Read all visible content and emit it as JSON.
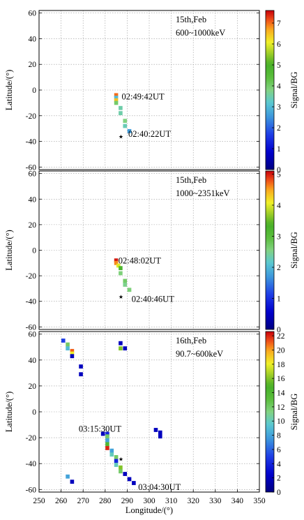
{
  "chart_data": [
    {
      "type": "heatmap",
      "date": "15th,Feb",
      "energy": "600~1000keV",
      "ylabel": "Latitude/(°)",
      "yticks": [
        "-60",
        "-40",
        "-20",
        "0",
        "20",
        "40",
        "60"
      ],
      "colorbar_label": "Signal/BG",
      "colorbar_ticks": [
        "0",
        "1",
        "2",
        "3",
        "4",
        "5",
        "6",
        "7"
      ],
      "colorbar_range": [
        0,
        7.6
      ],
      "xlim": [
        250,
        350
      ],
      "ylim": [
        -62,
        62
      ],
      "grid": true,
      "annotations": [
        {
          "text": "02:49:42UT",
          "lon": 287.5,
          "lat": -5
        },
        {
          "text": "02:40:22UT",
          "lon": 290.5,
          "lat": -34
        }
      ],
      "star": {
        "lon": 287,
        "lat": -36
      },
      "cells": [
        {
          "lon": 285,
          "lat": -4,
          "value": 7.0
        },
        {
          "lon": 285,
          "lat": -6,
          "value": 3.0
        },
        {
          "lon": 285,
          "lat": -8,
          "value": 6.5
        },
        {
          "lon": 285,
          "lat": -10,
          "value": 4.0
        },
        {
          "lon": 287,
          "lat": -14,
          "value": 3.5
        },
        {
          "lon": 287,
          "lat": -18,
          "value": 3.5
        },
        {
          "lon": 289,
          "lat": -24,
          "value": 3.8
        },
        {
          "lon": 289,
          "lat": -28,
          "value": 3.4
        },
        {
          "lon": 291,
          "lat": -32,
          "value": 2.6
        }
      ]
    },
    {
      "type": "heatmap",
      "date": "15th,Feb",
      "energy": "1000~2351keV",
      "ylabel": "Latitude/(°)",
      "yticks": [
        "-60",
        "-40",
        "-20",
        "0",
        "20",
        "40",
        "60"
      ],
      "colorbar_label": "Signal/BG",
      "colorbar_ticks": [
        "0",
        "1",
        "2",
        "3",
        "4",
        "5"
      ],
      "colorbar_range": [
        0,
        5.1
      ],
      "xlim": [
        250,
        350
      ],
      "ylim": [
        -62,
        62
      ],
      "grid": true,
      "annotations": [
        {
          "text": "02:48:02UT",
          "lon": 286,
          "lat": -8
        },
        {
          "text": "02:40:46UT",
          "lon": 292,
          "lat": -38
        }
      ],
      "star": {
        "lon": 287,
        "lat": -36
      },
      "cells": [
        {
          "lon": 285,
          "lat": -8,
          "value": 5.0
        },
        {
          "lon": 285,
          "lat": -10,
          "value": 4.6
        },
        {
          "lon": 286,
          "lat": -12,
          "value": 4.0
        },
        {
          "lon": 287,
          "lat": -14,
          "value": 3.2
        },
        {
          "lon": 287,
          "lat": -18,
          "value": 2.6
        },
        {
          "lon": 289,
          "lat": -24,
          "value": 2.7
        },
        {
          "lon": 289,
          "lat": -27,
          "value": 2.5
        },
        {
          "lon": 291,
          "lat": -31,
          "value": 2.6
        }
      ]
    },
    {
      "type": "heatmap",
      "date": "16th,Feb",
      "energy": "90.7~600keV",
      "ylabel": "Latitude/(°)",
      "xlabel": "Longitude/(°)",
      "xticks": [
        "250",
        "260",
        "270",
        "280",
        "290",
        "300",
        "310",
        "320",
        "330",
        "340",
        "350"
      ],
      "yticks": [
        "-60",
        "-40",
        "-20",
        "0",
        "20",
        "40",
        "60"
      ],
      "colorbar_label": "Signal/BG",
      "colorbar_ticks": [
        "0",
        "2",
        "4",
        "6",
        "8",
        "10",
        "12",
        "14",
        "16",
        "18",
        "20",
        "22"
      ],
      "colorbar_range": [
        0,
        22.6
      ],
      "xlim": [
        250,
        350
      ],
      "ylim": [
        -62,
        62
      ],
      "grid": true,
      "annotations": [
        {
          "text": "03:15:30UT",
          "lon": 268,
          "lat": -13
        },
        {
          "text": "03:04:30UT",
          "lon": 295,
          "lat": -58
        }
      ],
      "star": {
        "lon": 287,
        "lat": -36
      },
      "cells": [
        {
          "lon": 261,
          "lat": 55,
          "value": 5
        },
        {
          "lon": 263,
          "lat": 52,
          "value": 12
        },
        {
          "lon": 263,
          "lat": 49,
          "value": 9
        },
        {
          "lon": 265,
          "lat": 47,
          "value": 21
        },
        {
          "lon": 265,
          "lat": 45,
          "value": 18
        },
        {
          "lon": 265,
          "lat": 43,
          "value": 2
        },
        {
          "lon": 287,
          "lat": 53,
          "value": 2
        },
        {
          "lon": 287,
          "lat": 49,
          "value": 16
        },
        {
          "lon": 289,
          "lat": 49,
          "value": 2
        },
        {
          "lon": 269,
          "lat": 35,
          "value": 2
        },
        {
          "lon": 269,
          "lat": 29,
          "value": 2
        },
        {
          "lon": 279,
          "lat": -17,
          "value": 2
        },
        {
          "lon": 281,
          "lat": -17,
          "value": 4
        },
        {
          "lon": 281,
          "lat": -19,
          "value": 12
        },
        {
          "lon": 281,
          "lat": -22,
          "value": 8
        },
        {
          "lon": 281,
          "lat": -25,
          "value": 14
        },
        {
          "lon": 281,
          "lat": -28,
          "value": 22
        },
        {
          "lon": 283,
          "lat": -30,
          "value": 8
        },
        {
          "lon": 283,
          "lat": -33,
          "value": 10
        },
        {
          "lon": 285,
          "lat": -35,
          "value": 12
        },
        {
          "lon": 285,
          "lat": -38,
          "value": 4
        },
        {
          "lon": 285,
          "lat": -41,
          "value": 10
        },
        {
          "lon": 287,
          "lat": -43,
          "value": 16
        },
        {
          "lon": 287,
          "lat": -46,
          "value": 12
        },
        {
          "lon": 289,
          "lat": -48,
          "value": 2
        },
        {
          "lon": 291,
          "lat": -52,
          "value": 2
        },
        {
          "lon": 293,
          "lat": -55,
          "value": 2
        },
        {
          "lon": 303,
          "lat": -14,
          "value": 2
        },
        {
          "lon": 305,
          "lat": -16,
          "value": 2
        },
        {
          "lon": 305,
          "lat": -19,
          "value": 2
        },
        {
          "lon": 263,
          "lat": -50,
          "value": 8
        },
        {
          "lon": 265,
          "lat": -54,
          "value": 2
        }
      ]
    }
  ]
}
